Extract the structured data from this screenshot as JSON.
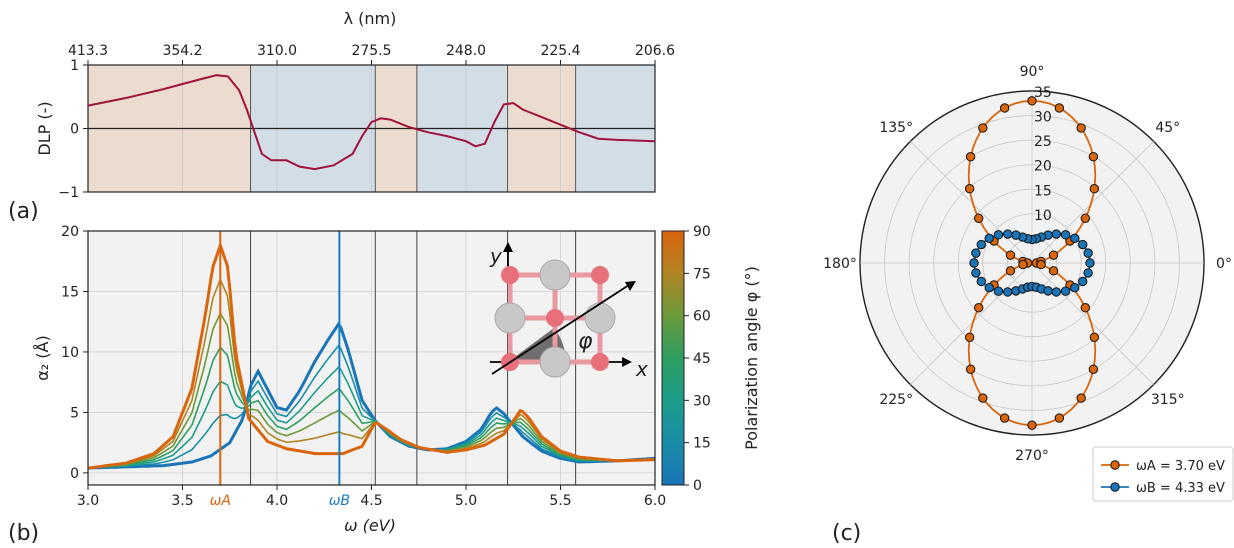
{
  "panel_labels": {
    "a": "(a)",
    "b": "(b)",
    "c": "(c)"
  },
  "chart_data": [
    {
      "id": "a",
      "type": "line",
      "ylabel": "DLP (-)",
      "top_axis_label": "λ (nm)",
      "top_ticks": [
        "413.3",
        "354.2",
        "310.0",
        "275.5",
        "248.0",
        "225.4",
        "206.6"
      ],
      "xlim": [
        3.0,
        6.0
      ],
      "ylim": [
        -1,
        1
      ],
      "yticks": [
        -1,
        0,
        1
      ],
      "region_boundaries_eV": [
        3.0,
        3.86,
        4.52,
        4.74,
        5.22,
        5.58,
        6.0
      ],
      "region_colors": [
        "#ecdcd0",
        "#d3dde6"
      ],
      "line_color": "#a0143c",
      "series": [
        {
          "x": [
            3.0,
            3.2,
            3.4,
            3.5,
            3.6,
            3.68,
            3.74,
            3.8,
            3.84,
            3.88,
            3.92,
            3.97,
            4.05,
            4.12,
            4.2,
            4.3,
            4.4,
            4.45,
            4.5,
            4.55,
            4.6,
            4.7,
            4.8,
            4.9,
            5.0,
            5.05,
            5.1,
            5.15,
            5.2,
            5.25,
            5.3,
            5.4,
            5.5,
            5.6,
            5.7,
            5.8,
            6.0
          ],
          "y": [
            0.36,
            0.48,
            0.62,
            0.7,
            0.78,
            0.84,
            0.82,
            0.6,
            0.3,
            -0.05,
            -0.4,
            -0.5,
            -0.5,
            -0.6,
            -0.64,
            -0.58,
            -0.4,
            -0.12,
            0.1,
            0.16,
            0.14,
            0.02,
            -0.06,
            -0.12,
            -0.2,
            -0.28,
            -0.24,
            0.1,
            0.38,
            0.4,
            0.3,
            0.18,
            0.06,
            -0.06,
            -0.16,
            -0.18,
            -0.2
          ]
        }
      ]
    },
    {
      "id": "b",
      "type": "line",
      "xlabel": "ω (eV)",
      "ylabel": "α₂ (Å)",
      "xlim": [
        3.0,
        6.0
      ],
      "ylim": [
        -1,
        20
      ],
      "xticks": [
        "3.0",
        "3.5",
        "4.0",
        "4.5",
        "5.0",
        "5.5",
        "6.0"
      ],
      "yticks": [
        "0",
        "5",
        "10",
        "15",
        "20"
      ],
      "vlines": [
        {
          "x": 3.7,
          "label": "ωA",
          "color": "#d9650d"
        },
        {
          "x": 4.33,
          "label": "ωB",
          "color": "#1a7fc0"
        }
      ],
      "region_boundaries_eV": [
        3.86,
        4.52,
        4.74,
        5.22,
        5.58
      ],
      "colorbar": {
        "label": "Polarization angle φ (°)",
        "ticks": [
          "0",
          "15",
          "30",
          "45",
          "60",
          "75",
          "90"
        ],
        "min": 0,
        "max": 90
      },
      "series_angles": [
        0,
        15,
        30,
        45,
        60,
        75,
        90
      ],
      "series_colors": [
        "#1a74b8",
        "#1a8da8",
        "#1c9d8a",
        "#2e9e62",
        "#6b9a3a",
        "#b08422",
        "#d9650d"
      ],
      "endpoint_series": [
        {
          "angle": 90,
          "x": [
            3.0,
            3.2,
            3.35,
            3.45,
            3.55,
            3.62,
            3.66,
            3.7,
            3.74,
            3.78,
            3.85,
            3.95,
            4.05,
            4.2,
            4.35,
            4.45,
            4.52,
            4.58,
            4.65,
            4.75,
            4.9,
            5.0,
            5.1,
            5.2,
            5.25,
            5.29,
            5.33,
            5.4,
            5.5,
            5.6,
            5.8,
            6.0
          ],
          "y": [
            0.4,
            0.8,
            1.6,
            3.0,
            7.0,
            13.0,
            17.0,
            18.8,
            17.0,
            10.0,
            4.5,
            2.6,
            2.0,
            1.6,
            1.6,
            2.2,
            4.2,
            3.6,
            2.8,
            2.1,
            1.7,
            1.9,
            2.3,
            3.2,
            4.3,
            5.2,
            4.6,
            3.0,
            1.8,
            1.3,
            1.0,
            1.1
          ]
        },
        {
          "angle": 0,
          "x": [
            3.0,
            3.2,
            3.4,
            3.55,
            3.65,
            3.75,
            3.82,
            3.86,
            3.9,
            3.94,
            4.0,
            4.05,
            4.12,
            4.2,
            4.27,
            4.33,
            4.38,
            4.45,
            4.52,
            4.6,
            4.7,
            4.8,
            4.9,
            5.0,
            5.08,
            5.13,
            5.16,
            5.2,
            5.3,
            5.4,
            5.5,
            5.6,
            5.8,
            6.0
          ],
          "y": [
            0.4,
            0.5,
            0.6,
            0.9,
            1.4,
            2.5,
            4.5,
            7.2,
            8.4,
            7.2,
            5.4,
            5.2,
            6.8,
            9.2,
            11.0,
            12.4,
            10.0,
            6.0,
            4.3,
            3.0,
            2.2,
            1.9,
            2.0,
            2.6,
            3.6,
            4.9,
            5.4,
            4.9,
            3.0,
            1.8,
            1.2,
            0.9,
            1.0,
            1.2
          ]
        }
      ]
    },
    {
      "id": "c",
      "type": "polar",
      "angle_ticks": [
        "0°",
        "45°",
        "90°",
        "135°",
        "180°",
        "225°",
        "270°",
        "315°"
      ],
      "radial_ticks": [
        "10",
        "15",
        "20",
        "25",
        "30",
        "35"
      ],
      "rlim": [
        0,
        35
      ],
      "series": [
        {
          "name": "ωA = 3.70 eV",
          "color": "#d9650d",
          "func": "0.9 + 32.1*sin^2(theta)"
        },
        {
          "name": "ωB = 4.33 eV",
          "color": "#1a74b8",
          "func": "4.8 + 7.0*cos^2(theta) (radial offset 10)"
        }
      ]
    }
  ]
}
